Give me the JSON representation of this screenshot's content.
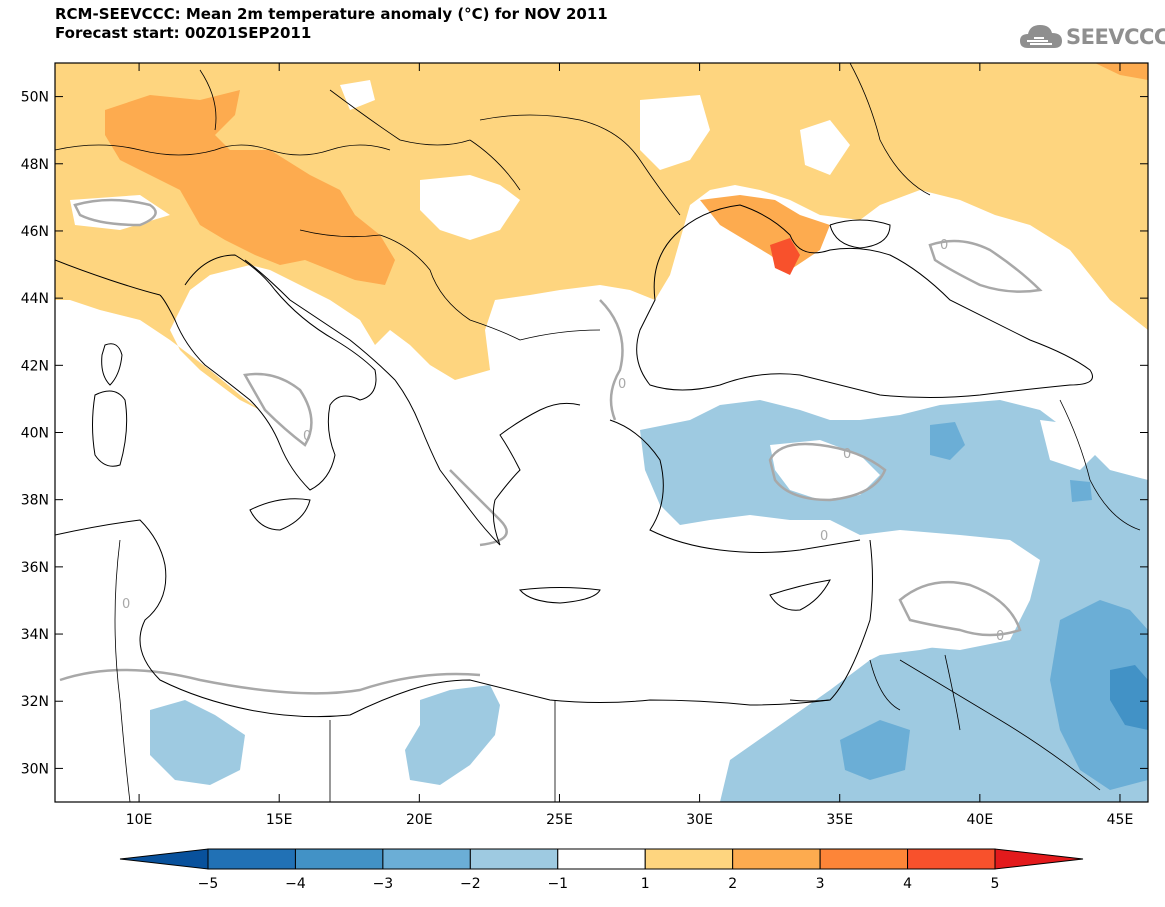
{
  "header": {
    "line1": "RCM-SEEVCCC: Mean 2m temperature anomaly (°C) for NOV 2011",
    "line2": "Forecast start: 00Z01SEP2011"
  },
  "logo": {
    "text": "SEEVCCC",
    "icon": "cloud-icon"
  },
  "map": {
    "lon_range": [
      7,
      46
    ],
    "lat_range": [
      29,
      51
    ],
    "x_ticks": [
      "10E",
      "15E",
      "20E",
      "25E",
      "30E",
      "35E",
      "40E",
      "45E"
    ],
    "y_ticks": [
      "50N",
      "48N",
      "46N",
      "44N",
      "42N",
      "40N",
      "38N",
      "36N",
      "34N",
      "32N",
      "30N"
    ],
    "contour_label": "0",
    "colors": {
      "warm1": "#fed57f",
      "warm2": "#fdab4f",
      "warm3": "#fd8538",
      "warm4": "#f8512c",
      "cool1": "#9ecae1",
      "cool2": "#6baed6",
      "cool3": "#4292c6",
      "cool4": "#2171b5",
      "contour": "#a8a8a8",
      "coast": "#000000"
    }
  },
  "colorbar": {
    "labels": [
      "-5",
      "-4",
      "-3",
      "-2",
      "-1",
      "1",
      "2",
      "3",
      "4",
      "5"
    ],
    "colors": [
      "#08519c",
      "#2171b5",
      "#4292c6",
      "#6baed6",
      "#9ecae1",
      "#ffffff",
      "#fed57f",
      "#fdab4f",
      "#fd8538",
      "#f8512c",
      "#e31a1c"
    ]
  }
}
